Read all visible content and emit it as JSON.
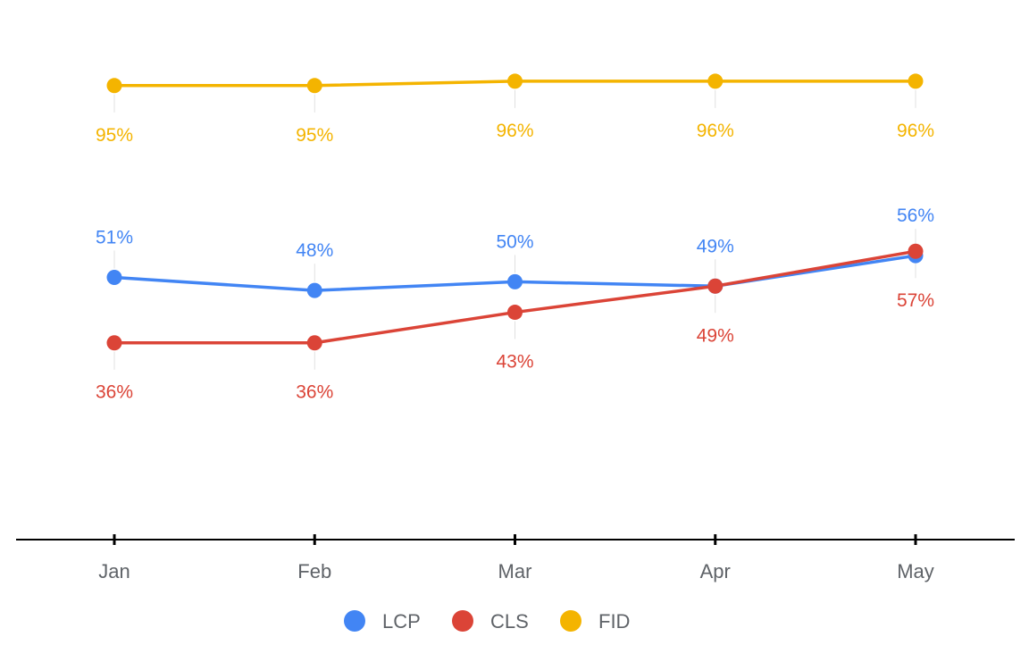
{
  "chart_data": {
    "type": "line",
    "title": "",
    "xlabel": "",
    "ylabel": "",
    "categories": [
      "Jan",
      "Feb",
      "Mar",
      "Apr",
      "May"
    ],
    "ylim": [
      0,
      100
    ],
    "grid": false,
    "legend_position": "bottom",
    "series": [
      {
        "name": "LCP",
        "color": "#4285f4",
        "values": [
          51,
          48,
          50,
          49,
          56
        ],
        "labels": [
          "51%",
          "48%",
          "50%",
          "49%",
          "56%"
        ],
        "label_side": "above"
      },
      {
        "name": "CLS",
        "color": "#db4437",
        "values": [
          36,
          36,
          43,
          49,
          57
        ],
        "labels": [
          "36%",
          "36%",
          "43%",
          "49%",
          "57%"
        ],
        "label_side": "below"
      },
      {
        "name": "FID",
        "color": "#f4b400",
        "values": [
          95,
          95,
          96,
          96,
          96
        ],
        "labels": [
          "95%",
          "95%",
          "96%",
          "96%",
          "96%"
        ],
        "label_side": "below"
      }
    ]
  }
}
